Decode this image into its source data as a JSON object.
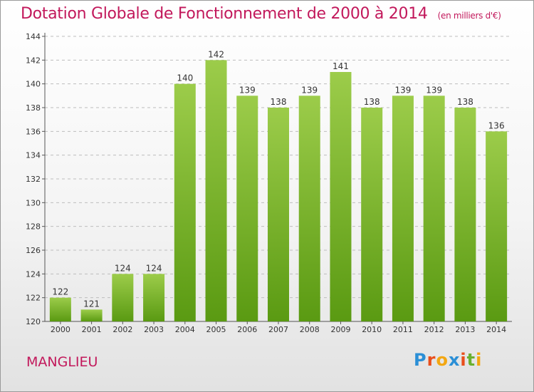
{
  "header": {
    "title": "Dotation Globale de Fonctionnement de 2000 à 2014",
    "subtitle": "(en milliers d'€)"
  },
  "footer": {
    "commune": "MANGLIEU",
    "logo": [
      "P",
      "r",
      "o",
      "x",
      "i",
      "t",
      "i"
    ]
  },
  "colors": {
    "title": "#c2185b",
    "bar_top": "#9ccc4a",
    "bar_bottom": "#5a9a12",
    "grid": "#bdbdbd",
    "logo": [
      "#2b8fd6",
      "#e94e1b",
      "#f3a712",
      "#2b8fd6",
      "#e94e1b",
      "#6ab02f",
      "#f3a712"
    ]
  },
  "chart_data": {
    "type": "bar",
    "title": "Dotation Globale de Fonctionnement de 2000 à 2014",
    "subtitle": "(en milliers d'€)",
    "categories": [
      "2000",
      "2001",
      "2002",
      "2003",
      "2004",
      "2005",
      "2006",
      "2007",
      "2008",
      "2009",
      "2010",
      "2011",
      "2012",
      "2013",
      "2014"
    ],
    "values": [
      122,
      121,
      124,
      124,
      140,
      142,
      139,
      138,
      139,
      141,
      138,
      139,
      139,
      138,
      136
    ],
    "ylim": [
      120,
      144
    ],
    "yticks": [
      120,
      122,
      124,
      126,
      128,
      130,
      132,
      134,
      136,
      138,
      140,
      142,
      144
    ],
    "grid": true,
    "xlabel": "",
    "ylabel": ""
  }
}
